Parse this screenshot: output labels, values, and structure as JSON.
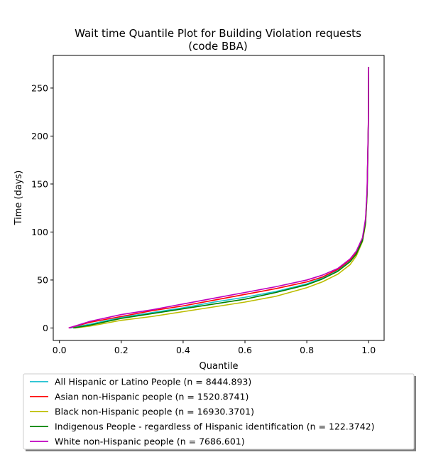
{
  "chart_data": {
    "type": "line",
    "title": "Wait time Quantile Plot for Building Violation  requests",
    "subtitle": "(code BBA)",
    "xlabel": "Quantile",
    "ylabel": "Time (days)",
    "xlim": [
      -0.02,
      1.05
    ],
    "ylim": [
      -13,
      284
    ],
    "xticks": [
      0.0,
      0.2,
      0.4,
      0.6,
      0.8,
      1.0
    ],
    "xtick_labels": [
      "0.0",
      "0.2",
      "0.4",
      "0.6",
      "0.8",
      "1.0"
    ],
    "yticks": [
      0,
      50,
      100,
      150,
      200,
      250
    ],
    "ytick_labels": [
      "0",
      "50",
      "100",
      "150",
      "200",
      "250"
    ],
    "grid": false,
    "legend_position": "below-plot",
    "series": [
      {
        "name": "All Hispanic or Latino People (n = 8444.893)",
        "color": "#17becf",
        "x": [
          0.035,
          0.1,
          0.2,
          0.3,
          0.4,
          0.5,
          0.6,
          0.7,
          0.8,
          0.85,
          0.9,
          0.94,
          0.96,
          0.98,
          0.99,
          0.995,
          0.999,
          1.0
        ],
        "y": [
          0,
          4,
          11,
          16,
          21,
          27,
          32,
          38,
          46,
          52,
          60,
          70,
          78,
          92,
          110,
          140,
          210,
          272
        ]
      },
      {
        "name": "Asian non-Hispanic people (n = 1520.8741)",
        "color": "#ff0000",
        "x": [
          0.03,
          0.1,
          0.2,
          0.3,
          0.4,
          0.5,
          0.6,
          0.7,
          0.8,
          0.85,
          0.9,
          0.94,
          0.96,
          0.98,
          0.99,
          0.995,
          0.999,
          1.0
        ],
        "y": [
          0,
          6,
          12,
          18,
          23,
          29,
          35,
          41,
          48,
          53,
          61,
          71,
          79,
          93,
          112,
          142,
          212,
          272
        ]
      },
      {
        "name": "Black non-Hispanic people (n = 16930.3701)",
        "color": "#bcbd00",
        "x": [
          0.05,
          0.1,
          0.2,
          0.3,
          0.4,
          0.5,
          0.6,
          0.7,
          0.8,
          0.85,
          0.9,
          0.94,
          0.96,
          0.98,
          0.99,
          0.995,
          0.999,
          1.0
        ],
        "y": [
          0,
          2,
          8,
          12,
          17,
          22,
          27,
          33,
          42,
          48,
          56,
          66,
          75,
          90,
          108,
          138,
          208,
          272
        ]
      },
      {
        "name": "Indigenous People - regardless of Hispanic identification (n = 122.3742)",
        "color": "#008000",
        "x": [
          0.045,
          0.1,
          0.2,
          0.3,
          0.4,
          0.5,
          0.6,
          0.7,
          0.8,
          0.85,
          0.9,
          0.94,
          0.96,
          0.98,
          0.99,
          0.995,
          0.999,
          1.0
        ],
        "y": [
          0,
          3,
          10,
          15,
          20,
          25,
          30,
          37,
          45,
          51,
          59,
          69,
          77,
          91,
          110,
          140,
          210,
          272
        ]
      },
      {
        "name": "White non-Hispanic people (n = 7686.601)",
        "color": "#bf00bf",
        "x": [
          0.03,
          0.1,
          0.2,
          0.3,
          0.4,
          0.5,
          0.6,
          0.7,
          0.8,
          0.85,
          0.9,
          0.94,
          0.96,
          0.98,
          0.99,
          0.995,
          0.999,
          1.0
        ],
        "y": [
          0,
          7,
          14,
          19,
          25,
          31,
          37,
          43,
          50,
          55,
          62,
          72,
          80,
          94,
          114,
          144,
          214,
          272
        ]
      }
    ]
  }
}
